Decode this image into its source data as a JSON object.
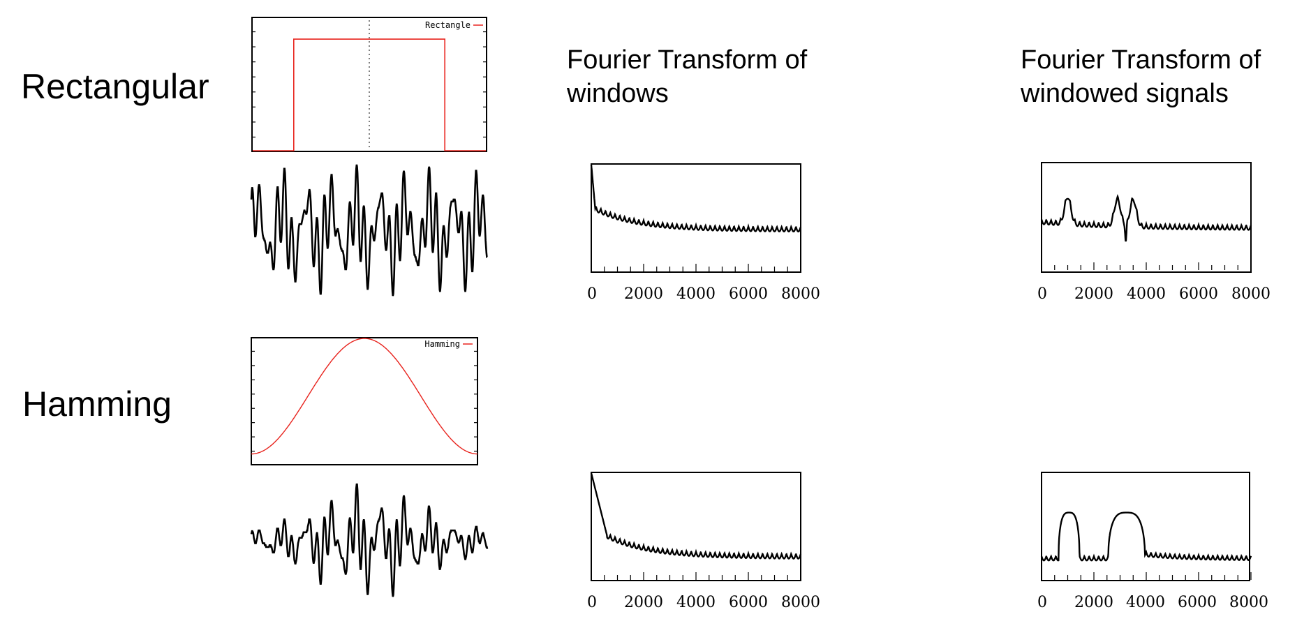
{
  "rows": [
    {
      "label": "Rectangular",
      "legend": "Rectangle"
    },
    {
      "label": "Hamming",
      "legend": "Hamming"
    }
  ],
  "column_titles": {
    "windows": "Fourier Transform of\nwindows",
    "windowed": "Fourier Transform of\nwindowed signals"
  },
  "colors": {
    "window_curve": "#e8231d",
    "signal": "#000000"
  },
  "chart_data": [
    {
      "id": "rect-window",
      "type": "line",
      "legend": [
        "Rectangle"
      ],
      "xlim": [
        0,
        1
      ],
      "ylim": [
        0,
        1
      ],
      "series": [
        {
          "name": "Rectangle",
          "shape": "rectangle",
          "start": 0.18,
          "end": 0.82,
          "level": 0.84
        }
      ],
      "center_line": 0.5
    },
    {
      "id": "rect-signal",
      "type": "line",
      "series": [
        {
          "shape": "waveform",
          "envelope": "rectangular"
        }
      ]
    },
    {
      "id": "rect-window-ft",
      "type": "line",
      "xlim": [
        0,
        8000
      ],
      "x_ticks": [
        "0",
        "2000",
        "4000",
        "6000",
        "8000"
      ],
      "series": [
        {
          "shape": "window-spectrum",
          "mainlobe_hz": 150,
          "floor": 0.4
        }
      ]
    },
    {
      "id": "rect-signal-ft",
      "type": "line",
      "xlim": [
        0,
        8000
      ],
      "x_ticks": [
        "0",
        "2000",
        "4000",
        "6000",
        "8000"
      ],
      "series": [
        {
          "shape": "signal-spectrum",
          "peaks_hz": [
            1000,
            2900,
            3500
          ],
          "floor": 0.4
        }
      ]
    },
    {
      "id": "ham-window",
      "type": "line",
      "legend": [
        "Hamming"
      ],
      "xlim": [
        0,
        1
      ],
      "ylim": [
        0,
        1
      ],
      "series": [
        {
          "name": "Hamming",
          "shape": "hamming",
          "min": 0.08,
          "max": 1.0
        }
      ]
    },
    {
      "id": "ham-signal",
      "type": "line",
      "series": [
        {
          "shape": "waveform",
          "envelope": "hamming"
        }
      ]
    },
    {
      "id": "ham-window-ft",
      "type": "line",
      "xlim": [
        0,
        8000
      ],
      "x_ticks": [
        "0",
        "2000",
        "4000",
        "6000",
        "8000"
      ],
      "series": [
        {
          "shape": "window-spectrum",
          "mainlobe_hz": 600,
          "floor": 0.22
        }
      ]
    },
    {
      "id": "ham-signal-ft",
      "type": "line",
      "xlim": [
        0,
        8000
      ],
      "x_ticks": [
        "0",
        "2000",
        "4000",
        "6000",
        "8000"
      ],
      "series": [
        {
          "shape": "signal-spectrum",
          "bumps_hz": [
            [
              650,
              1450
            ],
            [
              2550,
              3950
            ]
          ],
          "floor": 0.2
        }
      ]
    }
  ]
}
